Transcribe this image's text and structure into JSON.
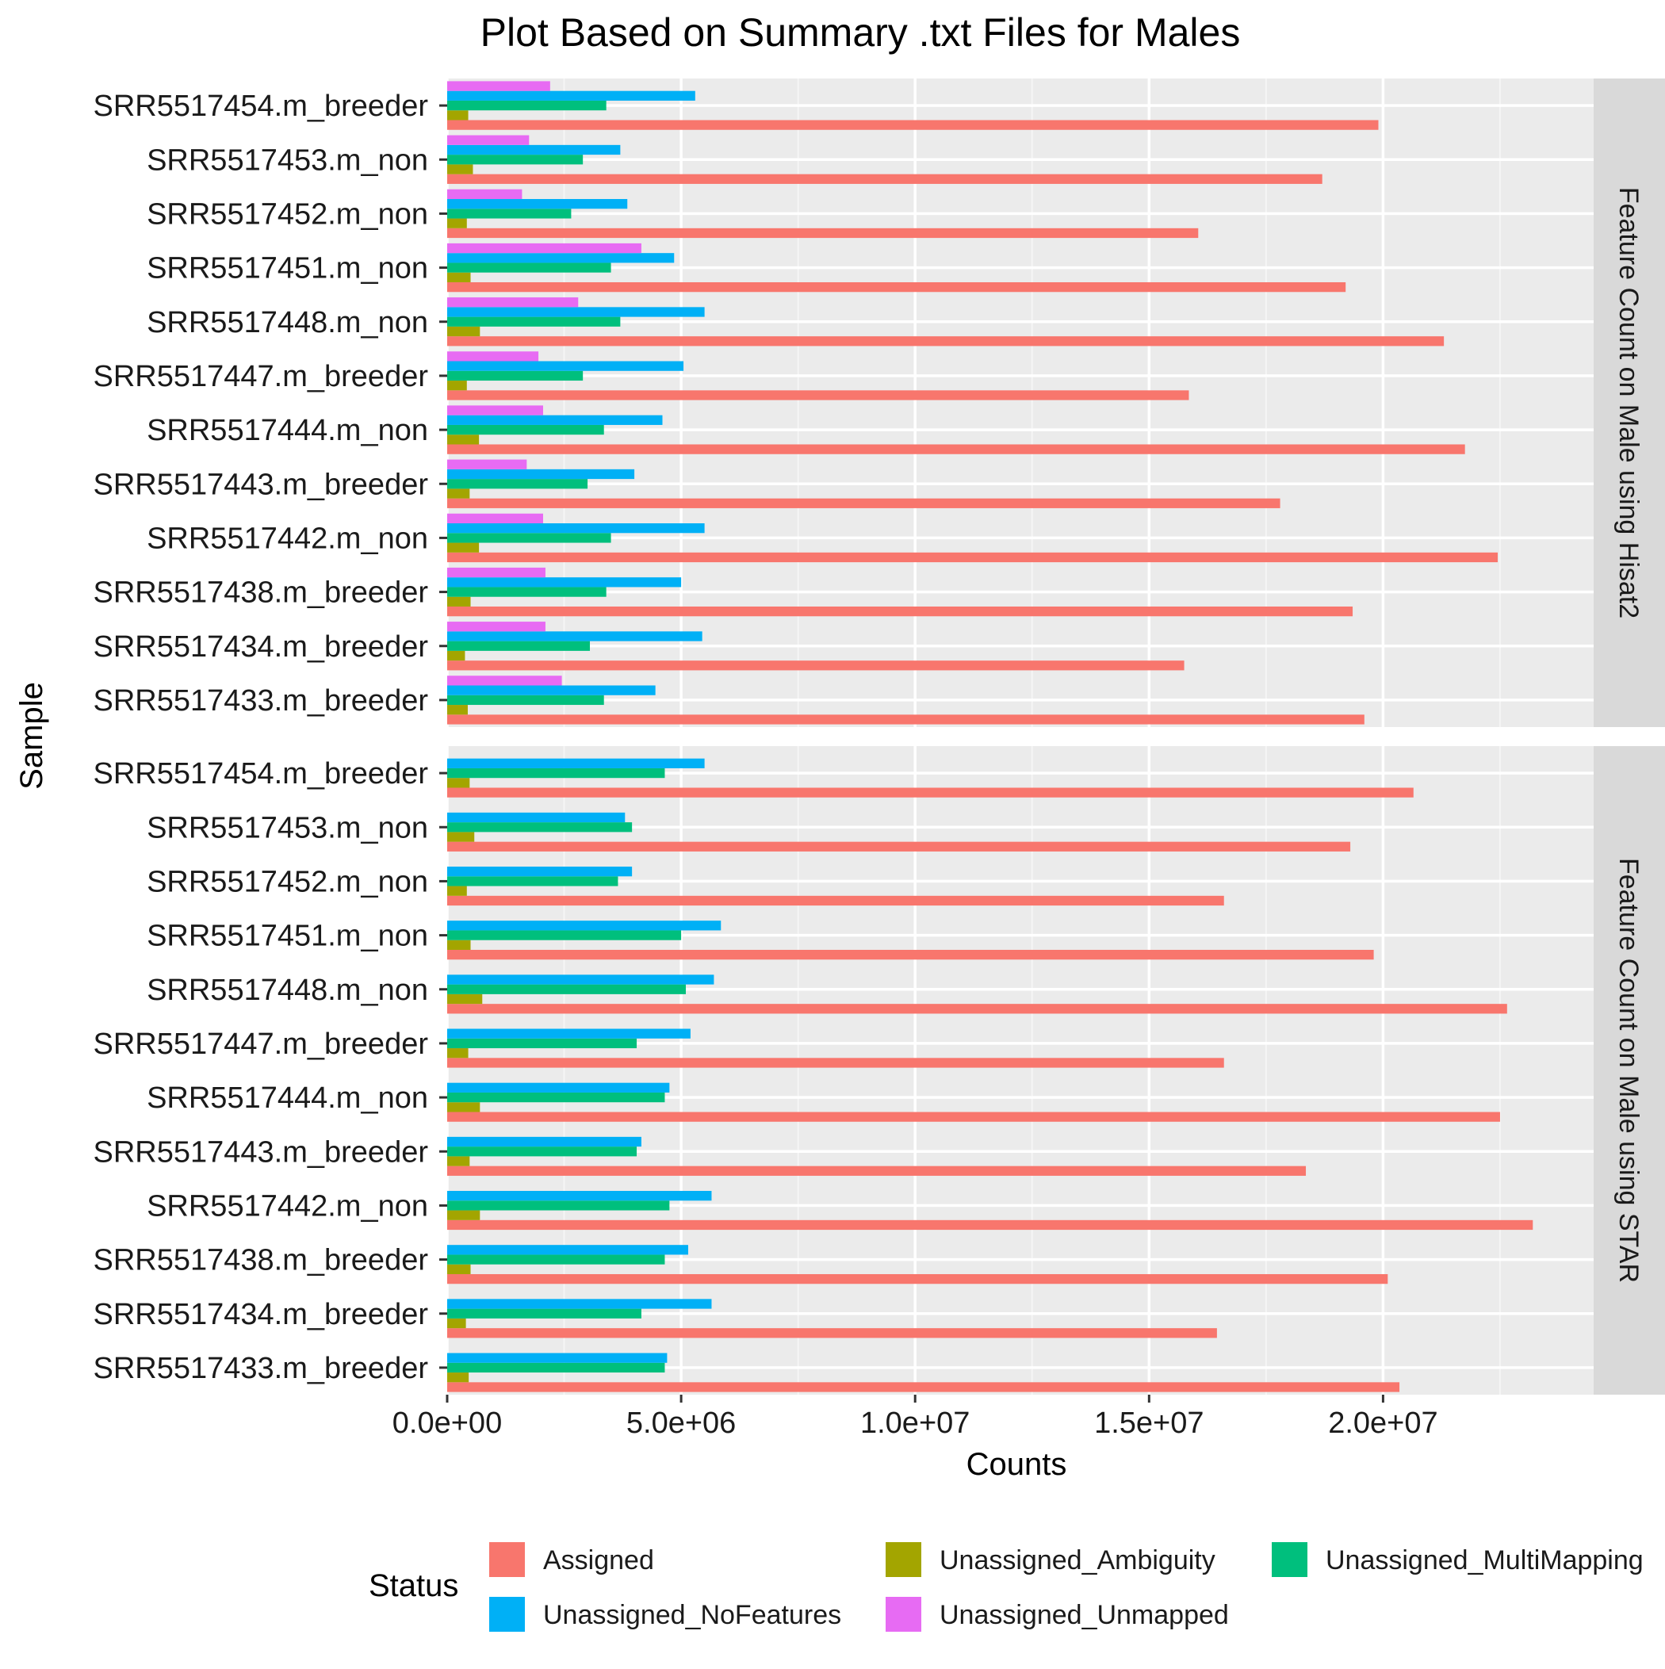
{
  "chart_data": {
    "type": "bar",
    "orientation": "horizontal",
    "grouped": true,
    "title": "Plot Based on Summary .txt Files for Males",
    "xlabel": "Counts",
    "ylabel": "Sample",
    "xlim": [
      0,
      24500000
    ],
    "x_ticks": [
      0,
      5000000,
      10000000,
      15000000,
      20000000
    ],
    "x_tick_labels": [
      "0.0e+00",
      "5.0e+06",
      "1.0e+07",
      "1.5e+07",
      "2.0e+07"
    ],
    "grid": true,
    "legend": {
      "title": "Status",
      "position": "bottom"
    },
    "categories": [
      "SRR5517454.m_breeder",
      "SRR5517453.m_non",
      "SRR5517452.m_non",
      "SRR5517451.m_non",
      "SRR5517448.m_non",
      "SRR5517447.m_breeder",
      "SRR5517444.m_non",
      "SRR5517443.m_breeder",
      "SRR5517442.m_non",
      "SRR5517438.m_breeder",
      "SRR5517434.m_breeder",
      "SRR5517433.m_breeder"
    ],
    "series_meta": [
      {
        "name": "Assigned",
        "color": "#F8766D"
      },
      {
        "name": "Unassigned_Ambiguity",
        "color": "#A3A500"
      },
      {
        "name": "Unassigned_MultiMapping",
        "color": "#00BF7D"
      },
      {
        "name": "Unassigned_NoFeatures",
        "color": "#00B0F6"
      },
      {
        "name": "Unassigned_Unmapped",
        "color": "#E76BF3"
      }
    ],
    "legend_order": [
      "Assigned",
      "Unassigned_Ambiguity",
      "Unassigned_MultiMapping",
      "Unassigned_NoFeatures",
      "Unassigned_Unmapped"
    ],
    "panels": [
      {
        "name": "Feature Count on Male using Hisat2",
        "series": [
          {
            "name": "Assigned",
            "values": [
              19900000,
              18700000,
              16050000,
              19200000,
              21300000,
              15850000,
              21750000,
              17800000,
              22450000,
              19350000,
              15750000,
              19600000
            ]
          },
          {
            "name": "Unassigned_Ambiguity",
            "values": [
              450000,
              550000,
              420000,
              500000,
              700000,
              420000,
              680000,
              480000,
              680000,
              500000,
              380000,
              440000
            ]
          },
          {
            "name": "Unassigned_MultiMapping",
            "values": [
              3400000,
              2900000,
              2650000,
              3500000,
              3700000,
              2900000,
              3350000,
              3000000,
              3500000,
              3400000,
              3050000,
              3350000
            ]
          },
          {
            "name": "Unassigned_NoFeatures",
            "values": [
              5300000,
              3700000,
              3850000,
              4850000,
              5500000,
              5050000,
              4600000,
              4000000,
              5500000,
              5000000,
              5450000,
              4450000
            ]
          },
          {
            "name": "Unassigned_Unmapped",
            "values": [
              2200000,
              1750000,
              1600000,
              4150000,
              2800000,
              1950000,
              2050000,
              1700000,
              2050000,
              2100000,
              2100000,
              2450000
            ]
          }
        ]
      },
      {
        "name": "Feature Count on Male using STAR",
        "series": [
          {
            "name": "Assigned",
            "values": [
              20650000,
              19300000,
              16600000,
              19800000,
              22650000,
              16600000,
              22500000,
              18350000,
              23200000,
              20100000,
              16450000,
              20350000
            ]
          },
          {
            "name": "Unassigned_Ambiguity",
            "values": [
              480000,
              580000,
              420000,
              500000,
              750000,
              450000,
              700000,
              480000,
              700000,
              500000,
              400000,
              460000
            ]
          },
          {
            "name": "Unassigned_MultiMapping",
            "values": [
              4650000,
              3950000,
              3650000,
              5000000,
              5100000,
              4050000,
              4650000,
              4050000,
              4750000,
              4650000,
              4150000,
              4650000
            ]
          },
          {
            "name": "Unassigned_NoFeatures",
            "values": [
              5500000,
              3800000,
              3950000,
              5850000,
              5700000,
              5200000,
              4750000,
              4150000,
              5650000,
              5150000,
              5650000,
              4700000
            ]
          },
          {
            "name": "Unassigned_Unmapped",
            "values": [
              0,
              0,
              0,
              0,
              0,
              0,
              0,
              0,
              0,
              0,
              0,
              0
            ]
          }
        ]
      }
    ]
  }
}
